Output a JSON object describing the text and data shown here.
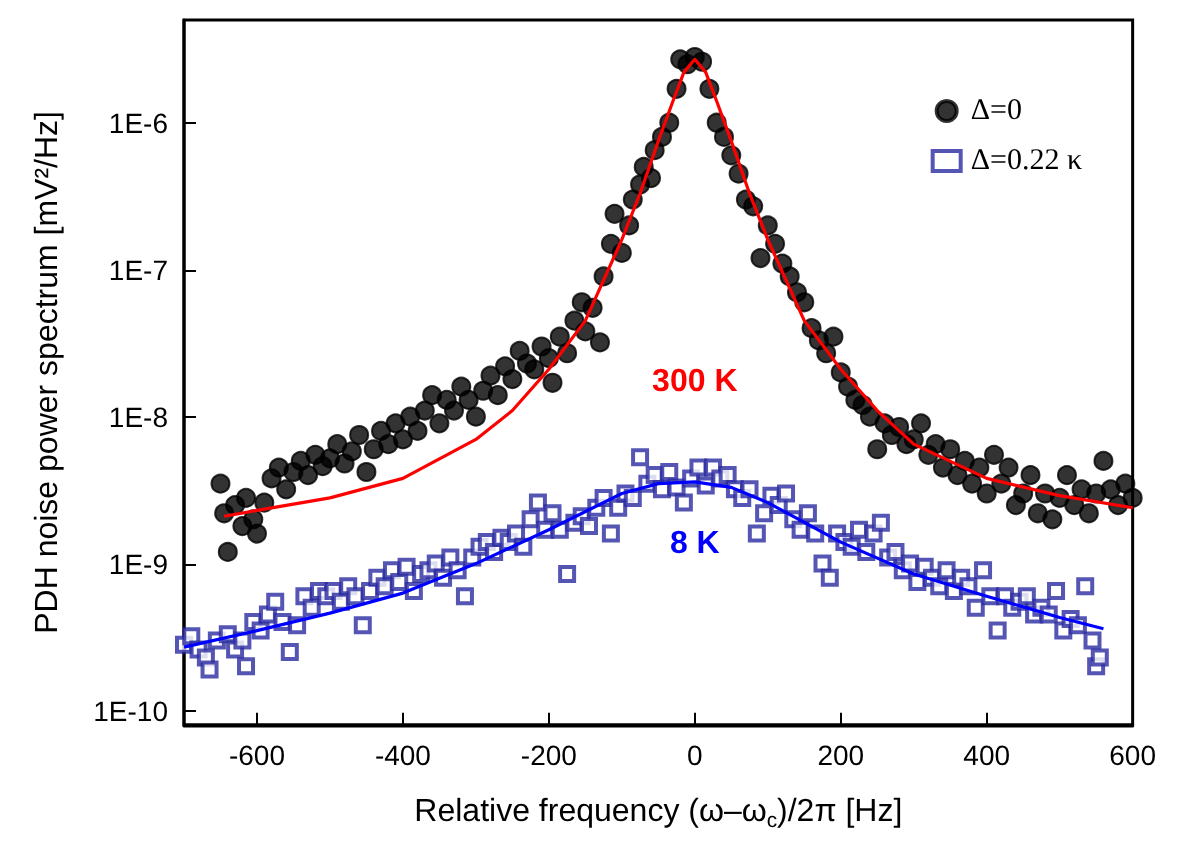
{
  "chart_data": {
    "type": "scatter",
    "xlabel": "Relative frequency (ω–ω$_{c}$)/2π [Hz]",
    "ylabel": "PDH noise power spectrum [mV²/Hz]",
    "log": "y",
    "grid": false,
    "legend": "top right",
    "xlim": [
      -700,
      600
    ],
    "xticks": [
      -600,
      -400,
      -200,
      0,
      200,
      400,
      600
    ],
    "ylim": [
      8e-11,
      5e-06
    ],
    "yticks": [
      {
        "value": 1e-10,
        "label": "1E-10"
      },
      {
        "value": 1e-09,
        "label": "1E-9"
      },
      {
        "value": 1e-08,
        "label": "1E-8"
      },
      {
        "value": 1e-07,
        "label": "1E-7"
      },
      {
        "value": 1e-06,
        "label": "1E-6"
      }
    ],
    "annotations": [
      "300 K",
      "8 K"
    ],
    "series": [
      {
        "name": "Δ=0",
        "marker": "circle",
        "color": "#000000",
        "x": [
          -650,
          -645,
          -640,
          -630,
          -620,
          -615,
          -605,
          -600,
          -590,
          -580,
          -570,
          -560,
          -550,
          -540,
          -530,
          -520,
          -510,
          -500,
          -490,
          -480,
          -470,
          -460,
          -450,
          -440,
          -430,
          -420,
          -410,
          -400,
          -390,
          -380,
          -370,
          -360,
          -350,
          -340,
          -330,
          -320,
          -310,
          -300,
          -290,
          -280,
          -270,
          -260,
          -250,
          -240,
          -230,
          -220,
          -210,
          -200,
          -195,
          -185,
          -175,
          -165,
          -155,
          -150,
          -140,
          -130,
          -125,
          -115,
          -110,
          -100,
          -90,
          -85,
          -75,
          -70,
          -60,
          -55,
          -45,
          -35,
          -25,
          -20,
          -10,
          0,
          10,
          20,
          30,
          40,
          50,
          60,
          70,
          80,
          90,
          100,
          110,
          120,
          130,
          140,
          150,
          160,
          170,
          180,
          190,
          200,
          210,
          220,
          230,
          240,
          250,
          260,
          270,
          280,
          290,
          300,
          310,
          320,
          330,
          340,
          350,
          360,
          370,
          380,
          390,
          400,
          410,
          420,
          430,
          440,
          450,
          460,
          470,
          480,
          490,
          500,
          510,
          520,
          530,
          540,
          550,
          560,
          570,
          580,
          590,
          600
        ],
        "values": [
          3.5e-09,
          2.2e-09,
          1.2e-09,
          2.5e-09,
          1.8e-09,
          2.8e-09,
          2e-09,
          1.6e-09,
          2.6e-09,
          3.8e-09,
          4.5e-09,
          3.2e-09,
          4.2e-09,
          5e-09,
          4e-09,
          5.5e-09,
          4.6e-09,
          5.2e-09,
          6.5e-09,
          4.8e-09,
          5.8e-09,
          7.5e-09,
          4.2e-09,
          6e-09,
          8e-09,
          6.5e-09,
          9e-09,
          7e-09,
          1e-08,
          8e-09,
          1.1e-08,
          1.4e-08,
          9e-09,
          1.3e-08,
          1.1e-08,
          1.6e-08,
          1.3e-08,
          1e-08,
          1.5e-08,
          1.9e-08,
          1.4e-08,
          2.2e-08,
          1.8e-08,
          2.8e-08,
          2.3e-08,
          2.1e-08,
          3e-08,
          2.5e-08,
          1.7e-08,
          3.5e-08,
          2.7e-08,
          4.5e-08,
          6e-08,
          3.8e-08,
          5.5e-08,
          3.2e-08,
          9e-08,
          1.5e-07,
          2.4e-07,
          1.3e-07,
          2e-07,
          3e-07,
          3.8e-07,
          5e-07,
          4.2e-07,
          6.5e-07,
          8e-07,
          1e-06,
          1.7e-06,
          2.7e-06,
          2.5e-06,
          2.8e-06,
          2.6e-06,
          1.7e-06,
          1e-06,
          8e-07,
          6e-07,
          4.5e-07,
          3e-07,
          2.7e-07,
          1.2e-07,
          2e-07,
          1.5e-07,
          1.1e-07,
          9e-08,
          7e-08,
          6e-08,
          4e-08,
          3.3e-08,
          2.7e-08,
          3.5e-08,
          2e-08,
          1.6e-08,
          1.3e-08,
          1.2e-08,
          1e-08,
          6e-09,
          9e-09,
          7.5e-09,
          8.5e-09,
          6.5e-09,
          7e-09,
          9e-09,
          5.5e-09,
          6.5e-09,
          4.5e-09,
          6e-09,
          4e-09,
          5e-09,
          3.5e-09,
          4.5e-09,
          3e-09,
          5.5e-09,
          3.5e-09,
          4.5e-09,
          2.5e-09,
          3e-09,
          4e-09,
          2.2e-09,
          3e-09,
          2e-09,
          2.8e-09,
          4e-09,
          2.5e-09,
          3.2e-09,
          2.2e-09,
          3e-09,
          5e-09,
          3.2e-09,
          2.5e-09,
          3.5e-09,
          2.8e-09
        ]
      },
      {
        "name": "Δ=0.22 κ",
        "marker": "square",
        "color": "#2b2ba0",
        "x": [
          -700,
          -690,
          -680,
          -670,
          -665,
          -655,
          -640,
          -630,
          -620,
          -615,
          -605,
          -595,
          -585,
          -575,
          -565,
          -555,
          -545,
          -535,
          -525,
          -515,
          -505,
          -495,
          -485,
          -475,
          -465,
          -455,
          -445,
          -435,
          -425,
          -415,
          -405,
          -395,
          -385,
          -375,
          -365,
          -355,
          -345,
          -335,
          -325,
          -315,
          -305,
          -295,
          -285,
          -275,
          -265,
          -255,
          -245,
          -235,
          -225,
          -215,
          -205,
          -195,
          -185,
          -175,
          -165,
          -155,
          -145,
          -135,
          -125,
          -115,
          -105,
          -95,
          -85,
          -75,
          -65,
          -55,
          -45,
          -35,
          -25,
          -15,
          -5,
          5,
          15,
          25,
          35,
          45,
          55,
          65,
          75,
          85,
          95,
          105,
          115,
          125,
          135,
          145,
          155,
          165,
          175,
          185,
          195,
          205,
          215,
          225,
          235,
          245,
          255,
          265,
          275,
          285,
          295,
          305,
          315,
          325,
          335,
          345,
          355,
          365,
          375,
          385,
          395,
          405,
          415,
          425,
          435,
          445,
          455,
          465,
          475,
          485,
          495,
          505,
          515,
          525,
          535,
          545,
          550,
          555
        ],
        "values": [
          2.8e-10,
          3.2e-10,
          2.6e-10,
          2.3e-10,
          1.9e-10,
          3e-10,
          3.3e-10,
          2.6e-10,
          3e-10,
          2e-10,
          4e-10,
          3.5e-10,
          4.5e-10,
          5.5e-10,
          4e-10,
          2.5e-10,
          3.8e-10,
          6e-10,
          5e-10,
          6.5e-10,
          6e-10,
          6.5e-10,
          5.5e-10,
          7e-10,
          6e-10,
          3.8e-10,
          6.5e-10,
          8e-10,
          7e-10,
          9e-10,
          7.5e-10,
          9.5e-10,
          6.5e-10,
          8.5e-10,
          9e-10,
          1e-09,
          8e-10,
          1.1e-09,
          9e-10,
          6e-10,
          1.1e-09,
          1.3e-09,
          1.4e-09,
          1.2e-09,
          1.5e-09,
          1.4e-09,
          1.6e-09,
          1.3e-09,
          2e-09,
          2.6e-09,
          1.7e-09,
          2.2e-09,
          1.7e-09,
          8.5e-10,
          1.9e-09,
          2.1e-09,
          1.8e-09,
          2.4e-09,
          2.8e-09,
          1.6e-09,
          2.4e-09,
          3e-09,
          2.8e-09,
          5.3e-09,
          3.5e-09,
          4e-09,
          3.2e-09,
          4.2e-09,
          3.3e-09,
          2.6e-09,
          3.8e-09,
          4.5e-09,
          3.4e-09,
          4.5e-09,
          3.8e-09,
          4e-09,
          3.2e-09,
          2.8e-09,
          3.2e-09,
          1.6e-09,
          2.2e-09,
          2.9e-09,
          2.5e-09,
          3e-09,
          2e-09,
          1.7e-09,
          2.2e-09,
          1.6e-09,
          1e-09,
          8e-10,
          1.6e-09,
          1.4e-09,
          1.3e-09,
          1.7e-09,
          1.2e-09,
          1.6e-09,
          1.9e-09,
          1.1e-09,
          1.2e-09,
          9e-10,
          1e-09,
          7.5e-10,
          9.5e-10,
          8e-10,
          7e-10,
          9e-10,
          6.5e-10,
          8e-10,
          7e-10,
          5e-10,
          9e-10,
          6e-10,
          3.5e-10,
          6e-10,
          5e-10,
          5.5e-10,
          6e-10,
          4.5e-10,
          5e-10,
          4.5e-10,
          6.5e-10,
          3.5e-10,
          4.2e-10,
          3.8e-10,
          7e-10,
          3e-10,
          2e-10,
          2.3e-10
        ]
      },
      {
        "type": "line",
        "marker": "none",
        "line_style": "solid",
        "color": "#ff0000",
        "x": [
          -645,
          -600,
          -500,
          -400,
          -300,
          -250,
          -200,
          -150,
          -100,
          -75,
          -50,
          -30,
          -15,
          0,
          15,
          30,
          50,
          75,
          100,
          150,
          200,
          250,
          300,
          400,
          500,
          600
        ],
        "values": [
          2.1e-09,
          2.3e-09,
          2.8e-09,
          3.8e-09,
          7e-09,
          1.1e-08,
          2.1e-08,
          4.5e-08,
          1.6e-07,
          3.3e-07,
          7.5e-07,
          1.4e-06,
          2.2e-06,
          2.7e-06,
          2.2e-06,
          1.4e-06,
          7.5e-07,
          3.3e-07,
          1.6e-07,
          4.5e-08,
          2.1e-08,
          1.1e-08,
          6.5e-09,
          3.8e-09,
          2.9e-09,
          2.4e-09
        ]
      },
      {
        "type": "line",
        "marker": "none",
        "line_style": "solid",
        "color": "#0000ff",
        "x": [
          -700,
          -600,
          -500,
          -400,
          -300,
          -200,
          -100,
          -50,
          0,
          50,
          100,
          200,
          300,
          400,
          500,
          560
        ],
        "values": [
          2.7e-10,
          3.5e-10,
          4.6e-10,
          6.3e-10,
          1e-09,
          1.7e-09,
          3e-09,
          3.5e-09,
          3.6e-09,
          3.3e-09,
          2.6e-09,
          1.4e-09,
          8.5e-10,
          6e-10,
          4.3e-10,
          3.6e-10
        ]
      }
    ]
  }
}
